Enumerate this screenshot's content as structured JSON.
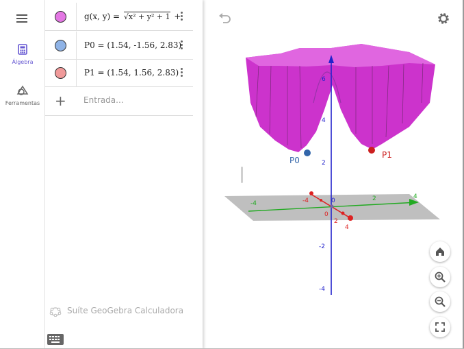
{
  "toolbar": {
    "tabs": [
      {
        "label": "Álgebra",
        "icon": "calculator-icon",
        "active": true
      },
      {
        "label": "Ferramentas",
        "icon": "shapes-icon",
        "active": false
      }
    ]
  },
  "algebra": {
    "items": [
      {
        "name": "g",
        "label": "g(x, y) = ",
        "expr": "√x² + y² + 1",
        "tail": "+",
        "color": "#cc33cc"
      },
      {
        "name": "P0",
        "label": "P0 = (1.54, -1.56, 2.83)",
        "color": "#4466aa"
      },
      {
        "name": "P1",
        "label": "P1 = (1.54, 1.56, 2.83)",
        "color": "#cc2222"
      }
    ],
    "input_placeholder": "Entrada...",
    "suite_label": "Suíte GeoGebra Calculadora"
  },
  "graphics": {
    "points": [
      {
        "name": "P0",
        "label": "P0"
      },
      {
        "name": "P1",
        "label": "P1"
      }
    ],
    "z_ticks": [
      "6",
      "4",
      "2",
      "-2",
      "-4"
    ],
    "y_ticks": [
      "-4",
      "2",
      "4"
    ],
    "x_ticks": [
      "-4",
      "0",
      "2",
      "4"
    ],
    "origin_label": "0",
    "colors": {
      "surface": "#cc33cc",
      "z_axis": "#2222cc",
      "y_axis": "#22aa22",
      "x_axis": "#dd2222",
      "accent": "#6557d2"
    }
  }
}
